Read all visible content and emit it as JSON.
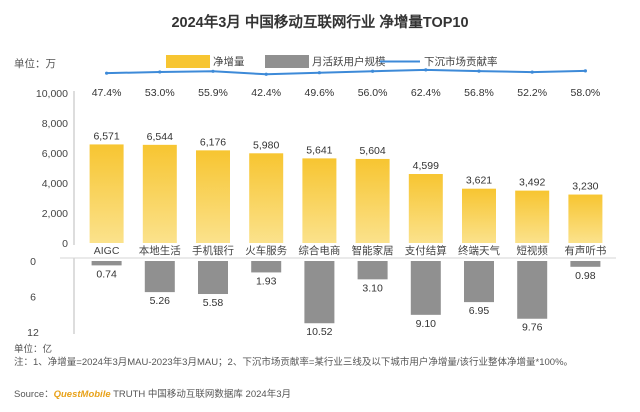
{
  "footer": {
    "unit_label": "单位：亿",
    "note": "注：1、净增量=2024年3月MAU-2023年3月MAU；2、下沉市场贡献率=某行业三线及以下城市用户净增量/该行业整体净增量*100%。",
    "source_prefix": "Source：",
    "source_brand": "QuestMobile",
    "source_suffix": " TRUTH 中国移动互联网数据库 2024年3月"
  },
  "colors": {
    "bar_top": "#f7c531",
    "bar_bottom": "#fbe28c",
    "gray_bar": "#909090",
    "line": "#3d8ad8",
    "title": "#333333"
  },
  "chart_data": {
    "type": "bar",
    "title": "2024年3月 中国移动互联网行业 净增量TOP10",
    "unit_top": "单位：万",
    "categories": [
      "AIGC",
      "本地生活",
      "手机银行",
      "火车服务",
      "综合电商",
      "智能家居",
      "支付结算",
      "终端天气",
      "短视频",
      "有声听书"
    ],
    "series": [
      {
        "name": "净增量",
        "type": "bar",
        "values": [
          6571,
          6544,
          6176,
          5980,
          5641,
          5604,
          4599,
          3621,
          3492,
          3230
        ],
        "labels": [
          "6,571",
          "6,544",
          "6,176",
          "5,980",
          "5,641",
          "5,604",
          "4,599",
          "3,621",
          "3,492",
          "3,230"
        ]
      },
      {
        "name": "月活跃用户规模",
        "type": "bar",
        "axis": "lower",
        "values": [
          0.74,
          5.26,
          5.58,
          1.93,
          10.52,
          3.1,
          9.1,
          6.95,
          9.76,
          0.98
        ],
        "labels": [
          "0.74",
          "5.26",
          "5.58",
          "1.93",
          "10.52",
          "3.10",
          "9.10",
          "6.95",
          "9.76",
          "0.98"
        ]
      },
      {
        "name": "下沉市场贡献率",
        "type": "line",
        "values": [
          47.4,
          53.0,
          55.9,
          42.4,
          49.6,
          56.0,
          62.4,
          56.8,
          52.2,
          58.0
        ],
        "labels": [
          "47.4%",
          "53.0%",
          "55.9%",
          "42.4%",
          "49.6%",
          "56.0%",
          "62.4%",
          "56.8%",
          "52.2%",
          "58.0%"
        ]
      }
    ],
    "yaxis_top": {
      "range": [
        0,
        10000
      ],
      "ticks": [
        "10,000",
        "8,000",
        "6,000",
        "4,000",
        "2,000",
        "0"
      ]
    },
    "yaxis_bottom": {
      "range": [
        0,
        12
      ],
      "ticks": [
        "0",
        "6",
        "12"
      ]
    },
    "legend_position": "top-center",
    "grid": false
  }
}
